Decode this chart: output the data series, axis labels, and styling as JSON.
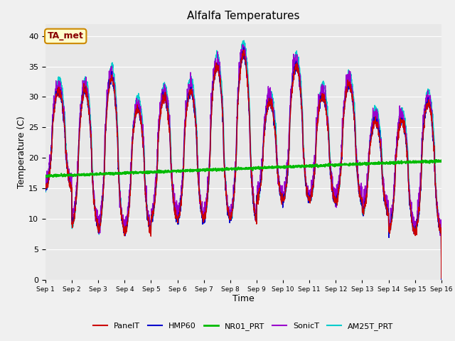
{
  "title": "Alfalfa Temperatures",
  "xlabel": "Time",
  "ylabel": "Temperature (C)",
  "ylim": [
    0,
    42
  ],
  "background_color": "#e8e8e8",
  "fig_bg": "#f0f0f0",
  "series": {
    "PanelT": {
      "color": "#cc0000",
      "lw": 1.0
    },
    "HMP60": {
      "color": "#0000cc",
      "lw": 1.0
    },
    "NR01_PRT": {
      "color": "#00bb00",
      "lw": 1.5
    },
    "SonicT": {
      "color": "#9900cc",
      "lw": 1.0
    },
    "AM25T_PRT": {
      "color": "#00cccc",
      "lw": 1.0
    }
  },
  "annotation": {
    "text": "TA_met",
    "fontsize": 9,
    "color": "#880000",
    "bg": "#ffffcc",
    "edgecolor": "#cc8800"
  },
  "xtick_labels": [
    "Sep 1",
    "Sep 2",
    "Sep 3",
    "Sep 4",
    "Sep 5",
    "Sep 6",
    "Sep 7",
    "Sep 8",
    "Sep 9",
    "Sep 10",
    "Sep 11",
    "Sep 12",
    "Sep 13",
    "Sep 14",
    "Sep 15",
    "Sep 16"
  ],
  "ytick_values": [
    0,
    5,
    10,
    15,
    20,
    25,
    30,
    35,
    40
  ],
  "day_peaks": [
    31,
    31,
    33,
    28,
    30,
    31,
    35,
    37,
    29,
    35,
    30,
    32,
    26,
    26,
    29
  ],
  "day_mins": [
    15,
    9,
    8,
    8,
    10,
    10,
    10,
    10,
    13,
    13,
    13,
    13,
    11,
    8,
    8
  ]
}
